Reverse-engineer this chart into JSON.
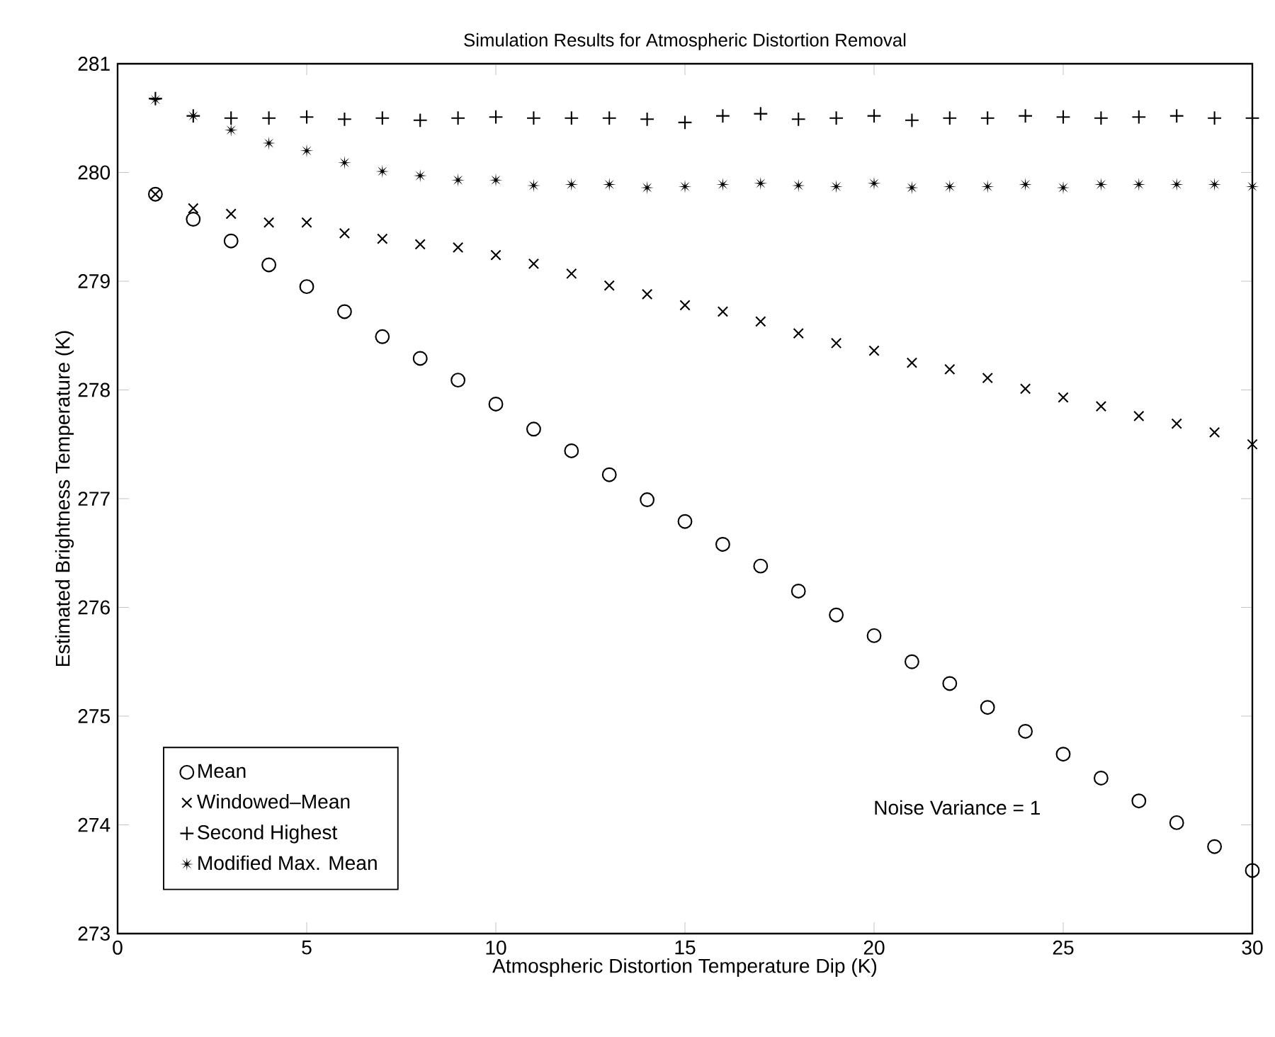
{
  "chart_data": {
    "type": "scatter",
    "title": "Simulation Results for Atmospheric Distortion Removal",
    "xlabel": "Atmospheric Distortion Temperature Dip (K)",
    "ylabel": "Estimated Brightness Temperature (K)",
    "x": [
      1,
      2,
      3,
      4,
      5,
      6,
      7,
      8,
      9,
      10,
      11,
      12,
      13,
      14,
      15,
      16,
      17,
      18,
      19,
      20,
      21,
      22,
      23,
      24,
      25,
      26,
      27,
      28,
      29,
      30
    ],
    "xlim": [
      0,
      30
    ],
    "xticks": [
      0,
      5,
      10,
      15,
      20,
      25,
      30
    ],
    "ylim": [
      273,
      281
    ],
    "yticks": [
      273,
      274,
      275,
      276,
      277,
      278,
      279,
      280,
      281
    ],
    "grid": false,
    "legend": "bottom left",
    "annotations": [
      "Noise Variance =   1"
    ],
    "series": [
      {
        "name": "Mean",
        "color": "#000000",
        "marker": "circle",
        "values": [
          279.8,
          279.57,
          279.37,
          279.15,
          278.95,
          278.72,
          278.49,
          278.29,
          278.09,
          277.87,
          277.64,
          277.44,
          277.22,
          276.99,
          276.79,
          276.58,
          276.38,
          276.15,
          275.93,
          275.74,
          275.5,
          275.3,
          275.08,
          274.86,
          274.65,
          274.43,
          274.22,
          274.02,
          273.8,
          273.58
        ]
      },
      {
        "name": "Windowed–Mean",
        "color": "#000000",
        "marker": "cross",
        "values": [
          279.8,
          279.67,
          279.62,
          279.54,
          279.54,
          279.44,
          279.39,
          279.34,
          279.31,
          279.24,
          279.16,
          279.07,
          278.96,
          278.88,
          278.78,
          278.72,
          278.63,
          278.52,
          278.43,
          278.36,
          278.25,
          278.19,
          278.11,
          278.01,
          277.93,
          277.85,
          277.76,
          277.69,
          277.61,
          277.5
        ]
      },
      {
        "name": "Second Highest",
        "color": "#000000",
        "marker": "plus",
        "values": [
          280.68,
          280.52,
          280.5,
          280.5,
          280.51,
          280.49,
          280.5,
          280.48,
          280.5,
          280.51,
          280.5,
          280.5,
          280.5,
          280.49,
          280.46,
          280.52,
          280.54,
          280.49,
          280.5,
          280.52,
          280.48,
          280.5,
          280.5,
          280.52,
          280.51,
          280.5,
          280.51,
          280.52,
          280.5,
          280.5
        ]
      },
      {
        "name": "Modified Max. Mean",
        "color": "#000000",
        "marker": "star",
        "values": [
          280.67,
          280.52,
          280.39,
          280.27,
          280.2,
          280.09,
          280.01,
          279.97,
          279.93,
          279.93,
          279.88,
          279.89,
          279.89,
          279.86,
          279.87,
          279.89,
          279.9,
          279.88,
          279.87,
          279.9,
          279.86,
          279.87,
          279.87,
          279.89,
          279.86,
          279.89,
          279.89,
          279.89,
          279.89,
          279.87
        ]
      }
    ]
  }
}
